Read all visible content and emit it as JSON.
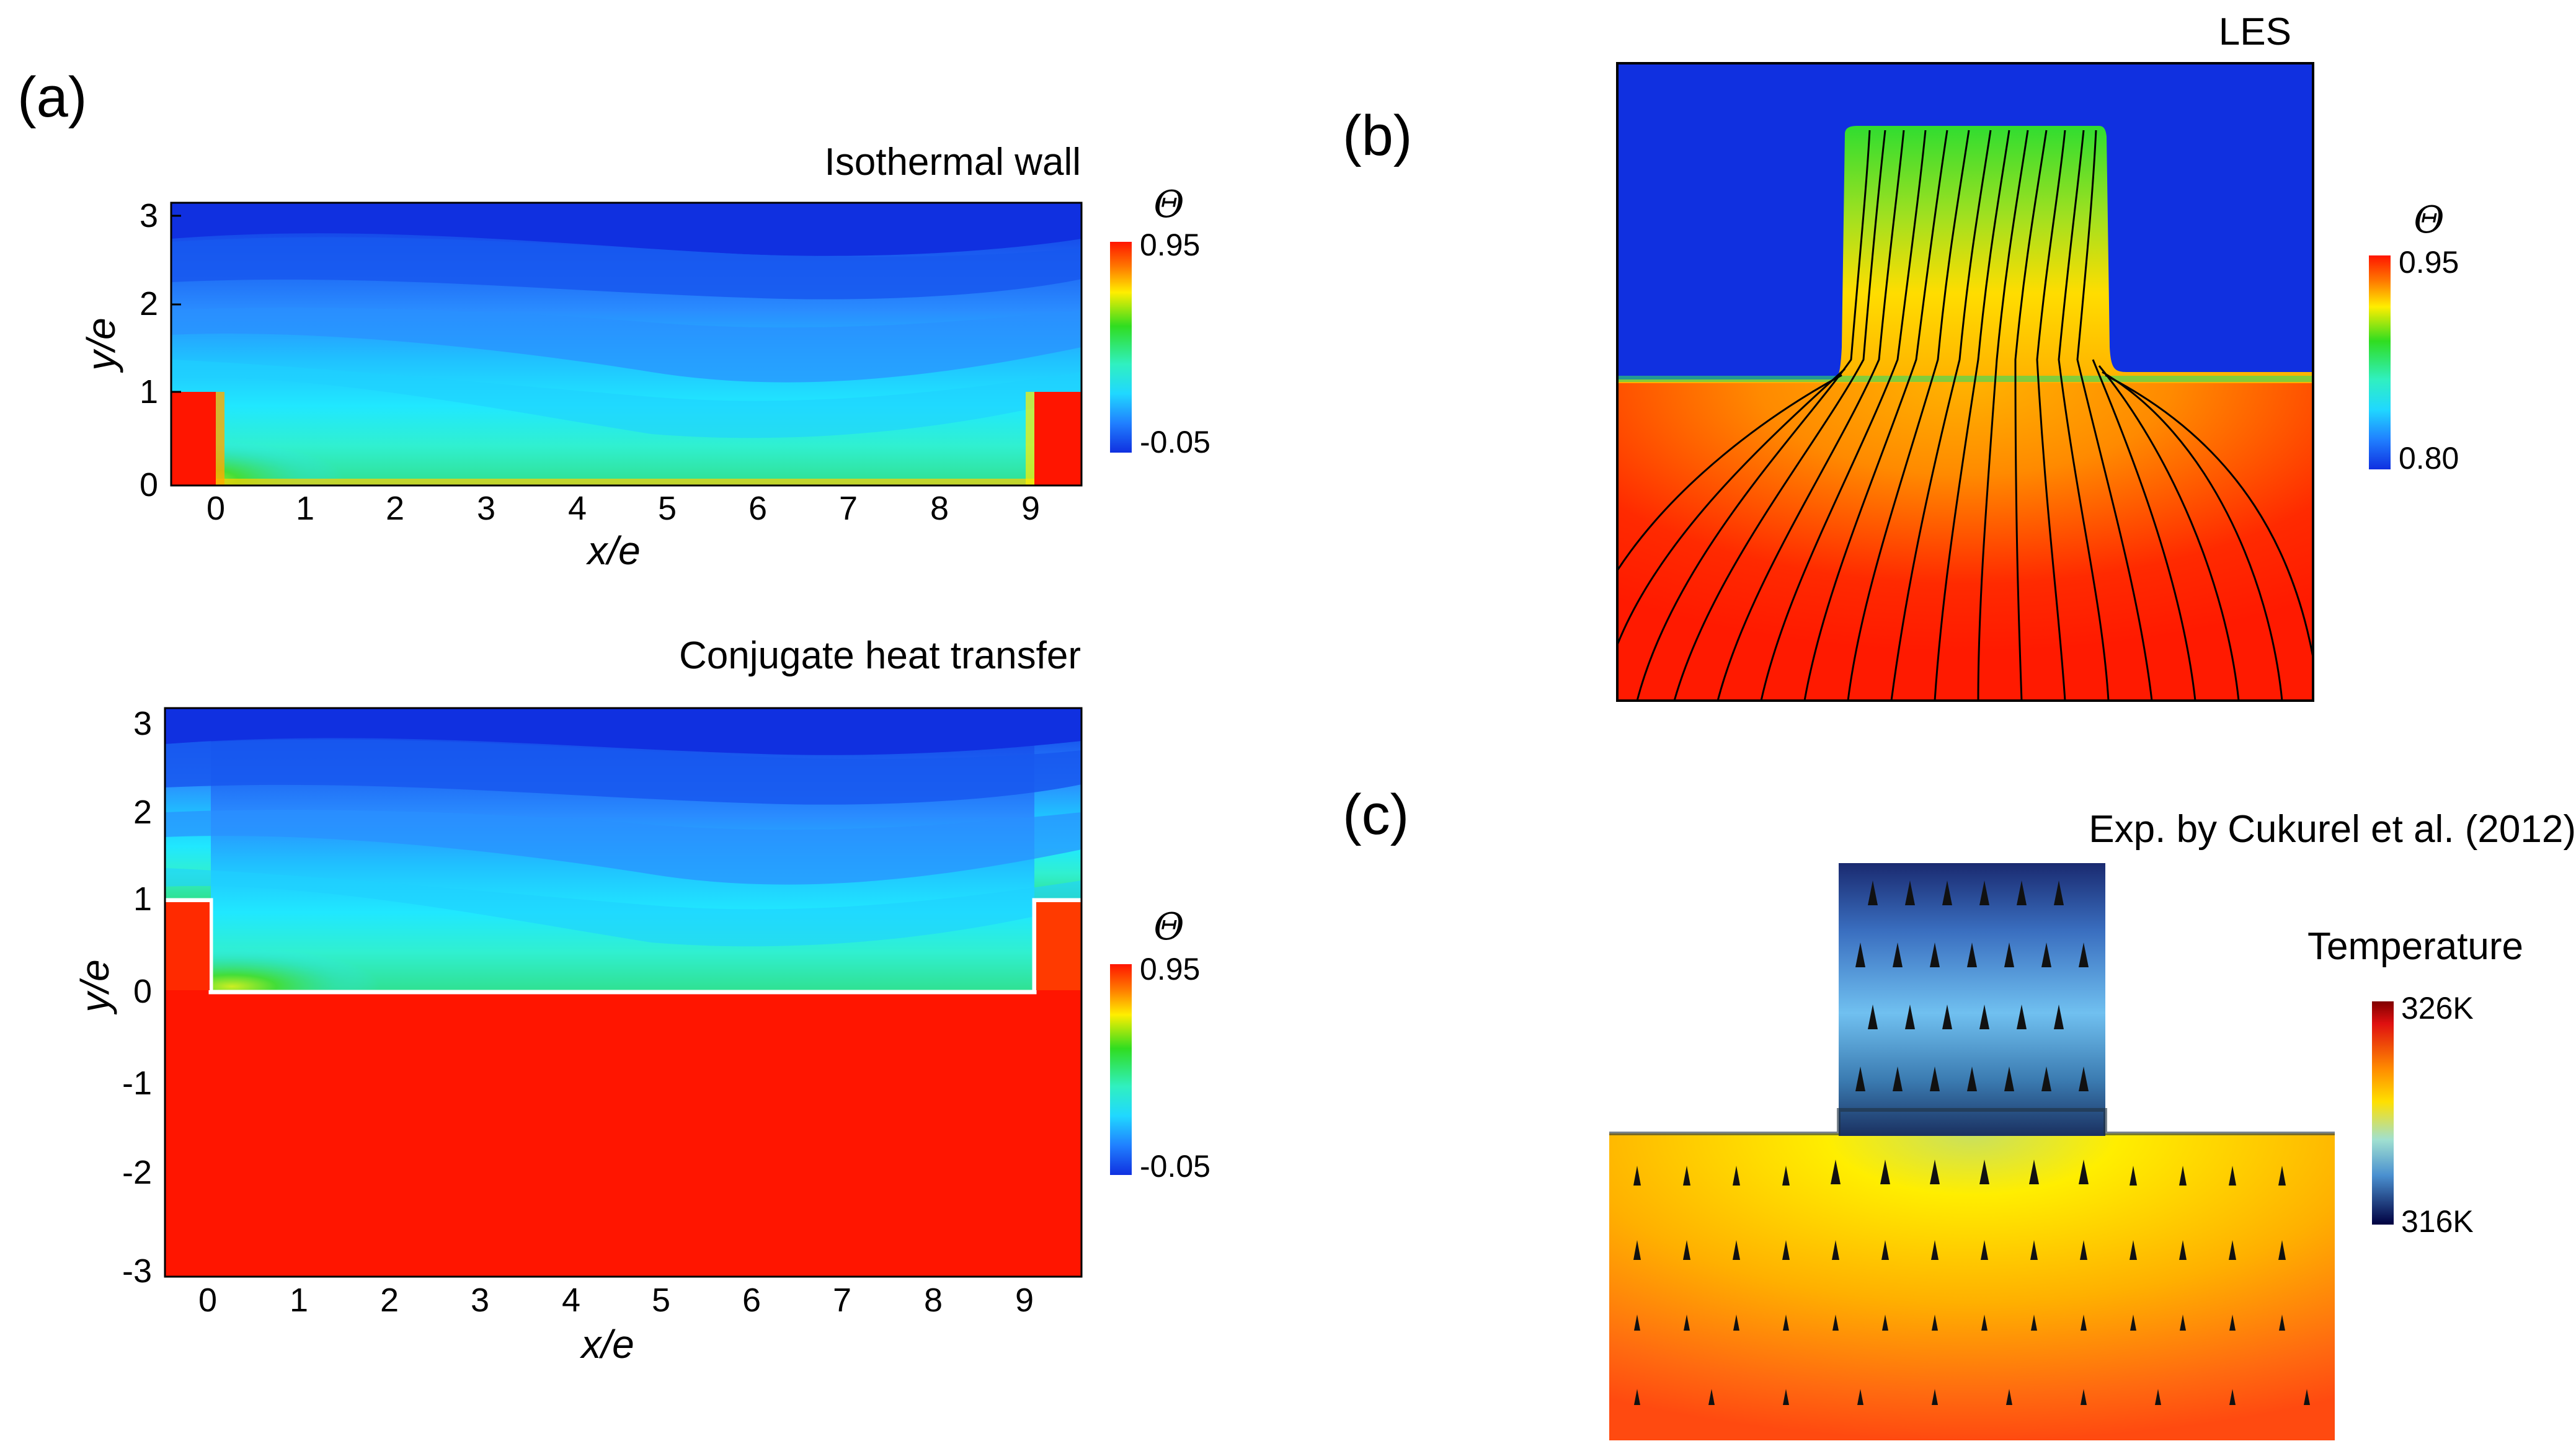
{
  "figure": {
    "panels": {
      "a": {
        "label": "(a)"
      },
      "b": {
        "label": "(b)"
      },
      "c": {
        "label": "(c)"
      }
    },
    "colors": {
      "hot": "#ff1500",
      "cold": "#1030e0",
      "green": "#22cc22",
      "cyan": "#22e0ff",
      "yellow": "#ffee00",
      "orange": "#ff8800"
    }
  },
  "chart_data": [
    {
      "type": "heatmap",
      "id": "a-top",
      "title": "Isothermal wall",
      "xlabel": "x/e",
      "ylabel": "y/e",
      "xlim": [
        -0.45,
        9.6
      ],
      "ylim": [
        0,
        3.2
      ],
      "x_ticks": [
        "0",
        "1",
        "2",
        "3",
        "4",
        "5",
        "6",
        "7",
        "8",
        "9"
      ],
      "y_ticks": [
        "0",
        "1",
        "2",
        "3"
      ],
      "colorbar": {
        "symbol": "Θ",
        "max_label": "0.95",
        "min_label": "-0.05",
        "range": [
          -0.05,
          0.95
        ]
      },
      "ribs": [
        {
          "x_start": -0.45,
          "x_end": 0.0,
          "height": 1
        },
        {
          "x_start": 9.0,
          "x_end": 9.6,
          "height": 1
        }
      ]
    },
    {
      "type": "heatmap",
      "id": "a-bottom",
      "title": "Conjugate heat transfer",
      "xlabel": "x/e",
      "ylabel": "y/e",
      "xlim": [
        -0.45,
        9.6
      ],
      "ylim": [
        -3.1,
        3.2
      ],
      "x_ticks": [
        "0",
        "1",
        "2",
        "3",
        "4",
        "5",
        "6",
        "7",
        "8",
        "9"
      ],
      "y_ticks": [
        "-3",
        "-2",
        "-1",
        "0",
        "1",
        "2",
        "3"
      ],
      "colorbar": {
        "symbol": "Θ",
        "max_label": "0.95",
        "min_label": "-0.05",
        "range": [
          -0.05,
          0.95
        ]
      },
      "ribs": [
        {
          "x_start": -0.45,
          "x_end": 0.0,
          "height": 1
        },
        {
          "x_start": 9.0,
          "x_end": 9.6,
          "height": 1
        }
      ]
    },
    {
      "type": "heatmap",
      "id": "b",
      "title": "LES",
      "colorbar": {
        "symbol": "Θ",
        "max_label": "0.95",
        "min_label": "0.80",
        "range": [
          0.8,
          0.95
        ]
      }
    },
    {
      "type": "heatmap",
      "id": "c",
      "title": "Exp. by Cukurel et al. (2012)",
      "colorbar": {
        "title": "Temperature",
        "max_label": "326K",
        "min_label": "316K",
        "range": [
          316,
          326
        ],
        "unit": "K"
      }
    }
  ]
}
